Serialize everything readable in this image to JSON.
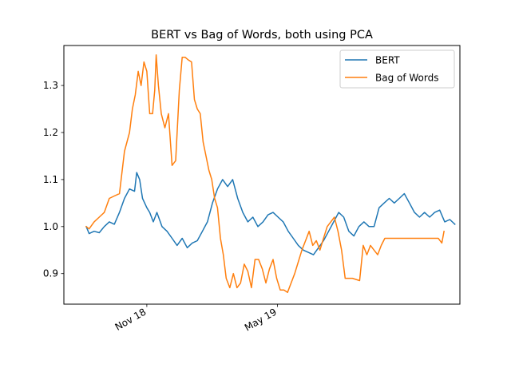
{
  "chart_data": {
    "type": "line",
    "title": "BERT vs Bag of Words, both using PCA",
    "xlabel": "",
    "ylabel": "",
    "x_ticks": [
      {
        "label": "Nov 18",
        "date": "2018-11-01"
      },
      {
        "label": "May 19",
        "date": "2019-05-01"
      }
    ],
    "xlim": [
      "2018-07-09",
      "2020-01-09"
    ],
    "ylim": [
      0.835,
      1.385
    ],
    "y_ticks": [
      0.9,
      1.0,
      1.1,
      1.2,
      1.3
    ],
    "y_tick_labels": [
      "0.9",
      "1.0",
      "1.1",
      "1.2",
      "1.3"
    ],
    "grid": false,
    "legend_position": "top-right",
    "series": [
      {
        "name": "BERT",
        "color": "#1f77b4",
        "points": [
          [
            "2018-08-09",
            1.0
          ],
          [
            "2018-08-13",
            0.985
          ],
          [
            "2018-08-20",
            0.99
          ],
          [
            "2018-08-27",
            0.987
          ],
          [
            "2018-09-03",
            1.0
          ],
          [
            "2018-09-10",
            1.01
          ],
          [
            "2018-09-17",
            1.005
          ],
          [
            "2018-09-24",
            1.03
          ],
          [
            "2018-10-01",
            1.06
          ],
          [
            "2018-10-08",
            1.08
          ],
          [
            "2018-10-15",
            1.075
          ],
          [
            "2018-10-18",
            1.115
          ],
          [
            "2018-10-22",
            1.1
          ],
          [
            "2018-10-26",
            1.06
          ],
          [
            "2018-11-01",
            1.04
          ],
          [
            "2018-11-05",
            1.03
          ],
          [
            "2018-11-10",
            1.01
          ],
          [
            "2018-11-15",
            1.03
          ],
          [
            "2018-11-22",
            1.0
          ],
          [
            "2018-11-29",
            0.99
          ],
          [
            "2018-12-06",
            0.975
          ],
          [
            "2018-12-13",
            0.96
          ],
          [
            "2018-12-20",
            0.975
          ],
          [
            "2018-12-27",
            0.955
          ],
          [
            "2019-01-03",
            0.965
          ],
          [
            "2019-01-10",
            0.97
          ],
          [
            "2019-01-17",
            0.99
          ],
          [
            "2019-01-24",
            1.01
          ],
          [
            "2019-01-31",
            1.05
          ],
          [
            "2019-02-07",
            1.08
          ],
          [
            "2019-02-14",
            1.1
          ],
          [
            "2019-02-21",
            1.085
          ],
          [
            "2019-02-28",
            1.1
          ],
          [
            "2019-03-07",
            1.06
          ],
          [
            "2019-03-14",
            1.03
          ],
          [
            "2019-03-21",
            1.01
          ],
          [
            "2019-03-28",
            1.02
          ],
          [
            "2019-04-04",
            1.0
          ],
          [
            "2019-04-11",
            1.01
          ],
          [
            "2019-04-18",
            1.025
          ],
          [
            "2019-04-25",
            1.03
          ],
          [
            "2019-05-02",
            1.02
          ],
          [
            "2019-05-09",
            1.01
          ],
          [
            "2019-05-16",
            0.99
          ],
          [
            "2019-05-23",
            0.975
          ],
          [
            "2019-05-30",
            0.96
          ],
          [
            "2019-06-06",
            0.95
          ],
          [
            "2019-06-13",
            0.945
          ],
          [
            "2019-06-20",
            0.94
          ],
          [
            "2019-06-27",
            0.955
          ],
          [
            "2019-07-04",
            0.97
          ],
          [
            "2019-07-11",
            0.99
          ],
          [
            "2019-07-18",
            1.01
          ],
          [
            "2019-07-25",
            1.03
          ],
          [
            "2019-08-01",
            1.02
          ],
          [
            "2019-08-08",
            0.99
          ],
          [
            "2019-08-15",
            0.98
          ],
          [
            "2019-08-22",
            1.0
          ],
          [
            "2019-08-29",
            1.01
          ],
          [
            "2019-09-05",
            1.0
          ],
          [
            "2019-09-12",
            1.0
          ],
          [
            "2019-09-19",
            1.04
          ],
          [
            "2019-09-26",
            1.05
          ],
          [
            "2019-10-03",
            1.06
          ],
          [
            "2019-10-10",
            1.05
          ],
          [
            "2019-10-17",
            1.06
          ],
          [
            "2019-10-24",
            1.07
          ],
          [
            "2019-10-31",
            1.05
          ],
          [
            "2019-11-07",
            1.03
          ],
          [
            "2019-11-14",
            1.02
          ],
          [
            "2019-11-21",
            1.03
          ],
          [
            "2019-11-28",
            1.02
          ],
          [
            "2019-12-05",
            1.03
          ],
          [
            "2019-12-12",
            1.035
          ],
          [
            "2019-12-19",
            1.01
          ],
          [
            "2019-12-26",
            1.015
          ],
          [
            "2020-01-02",
            1.005
          ]
        ]
      },
      {
        "name": "Bag of Words",
        "color": "#ff7f0e",
        "points": [
          [
            "2018-08-09",
            1.0
          ],
          [
            "2018-08-13",
            0.995
          ],
          [
            "2018-08-20",
            1.01
          ],
          [
            "2018-08-27",
            1.02
          ],
          [
            "2018-09-03",
            1.03
          ],
          [
            "2018-09-10",
            1.06
          ],
          [
            "2018-09-17",
            1.065
          ],
          [
            "2018-09-24",
            1.07
          ],
          [
            "2018-10-01",
            1.16
          ],
          [
            "2018-10-08",
            1.2
          ],
          [
            "2018-10-12",
            1.25
          ],
          [
            "2018-10-16",
            1.28
          ],
          [
            "2018-10-20",
            1.33
          ],
          [
            "2018-10-24",
            1.3
          ],
          [
            "2018-10-28",
            1.35
          ],
          [
            "2018-11-01",
            1.33
          ],
          [
            "2018-11-05",
            1.24
          ],
          [
            "2018-11-09",
            1.24
          ],
          [
            "2018-11-12",
            1.29
          ],
          [
            "2018-11-14",
            1.365
          ],
          [
            "2018-11-17",
            1.3
          ],
          [
            "2018-11-21",
            1.24
          ],
          [
            "2018-11-26",
            1.21
          ],
          [
            "2018-12-01",
            1.24
          ],
          [
            "2018-12-06",
            1.13
          ],
          [
            "2018-12-11",
            1.14
          ],
          [
            "2018-12-16",
            1.29
          ],
          [
            "2018-12-20",
            1.36
          ],
          [
            "2018-12-24",
            1.36
          ],
          [
            "2018-12-28",
            1.355
          ],
          [
            "2019-01-02",
            1.35
          ],
          [
            "2019-01-06",
            1.27
          ],
          [
            "2019-01-10",
            1.25
          ],
          [
            "2019-01-14",
            1.24
          ],
          [
            "2019-01-18",
            1.18
          ],
          [
            "2019-01-22",
            1.15
          ],
          [
            "2019-01-26",
            1.12
          ],
          [
            "2019-01-30",
            1.1
          ],
          [
            "2019-02-03",
            1.06
          ],
          [
            "2019-02-07",
            1.04
          ],
          [
            "2019-02-11",
            0.975
          ],
          [
            "2019-02-15",
            0.94
          ],
          [
            "2019-02-19",
            0.89
          ],
          [
            "2019-02-24",
            0.87
          ],
          [
            "2019-03-01",
            0.9
          ],
          [
            "2019-03-06",
            0.87
          ],
          [
            "2019-03-11",
            0.88
          ],
          [
            "2019-03-16",
            0.92
          ],
          [
            "2019-03-21",
            0.905
          ],
          [
            "2019-03-26",
            0.87
          ],
          [
            "2019-03-31",
            0.93
          ],
          [
            "2019-04-05",
            0.93
          ],
          [
            "2019-04-10",
            0.91
          ],
          [
            "2019-04-15",
            0.88
          ],
          [
            "2019-04-20",
            0.91
          ],
          [
            "2019-04-25",
            0.93
          ],
          [
            "2019-04-30",
            0.89
          ],
          [
            "2019-05-05",
            0.865
          ],
          [
            "2019-05-10",
            0.865
          ],
          [
            "2019-05-15",
            0.86
          ],
          [
            "2019-05-20",
            0.88
          ],
          [
            "2019-05-25",
            0.9
          ],
          [
            "2019-05-30",
            0.925
          ],
          [
            "2019-06-04",
            0.95
          ],
          [
            "2019-06-09",
            0.97
          ],
          [
            "2019-06-14",
            0.99
          ],
          [
            "2019-06-19",
            0.96
          ],
          [
            "2019-06-24",
            0.97
          ],
          [
            "2019-06-29",
            0.95
          ],
          [
            "2019-07-04",
            0.975
          ],
          [
            "2019-07-09",
            1.0
          ],
          [
            "2019-07-14",
            1.01
          ],
          [
            "2019-07-19",
            1.02
          ],
          [
            "2019-07-24",
            0.99
          ],
          [
            "2019-07-29",
            0.95
          ],
          [
            "2019-08-03",
            0.89
          ],
          [
            "2019-08-13",
            0.89
          ],
          [
            "2019-08-23",
            0.885
          ],
          [
            "2019-08-28",
            0.96
          ],
          [
            "2019-09-02",
            0.94
          ],
          [
            "2019-09-07",
            0.96
          ],
          [
            "2019-09-12",
            0.95
          ],
          [
            "2019-09-17",
            0.94
          ],
          [
            "2019-09-22",
            0.96
          ],
          [
            "2019-09-27",
            0.975
          ],
          [
            "2019-10-15",
            0.975
          ],
          [
            "2019-11-15",
            0.975
          ],
          [
            "2019-12-10",
            0.975
          ],
          [
            "2019-12-15",
            0.965
          ],
          [
            "2019-12-18",
            0.99
          ]
        ]
      }
    ]
  }
}
